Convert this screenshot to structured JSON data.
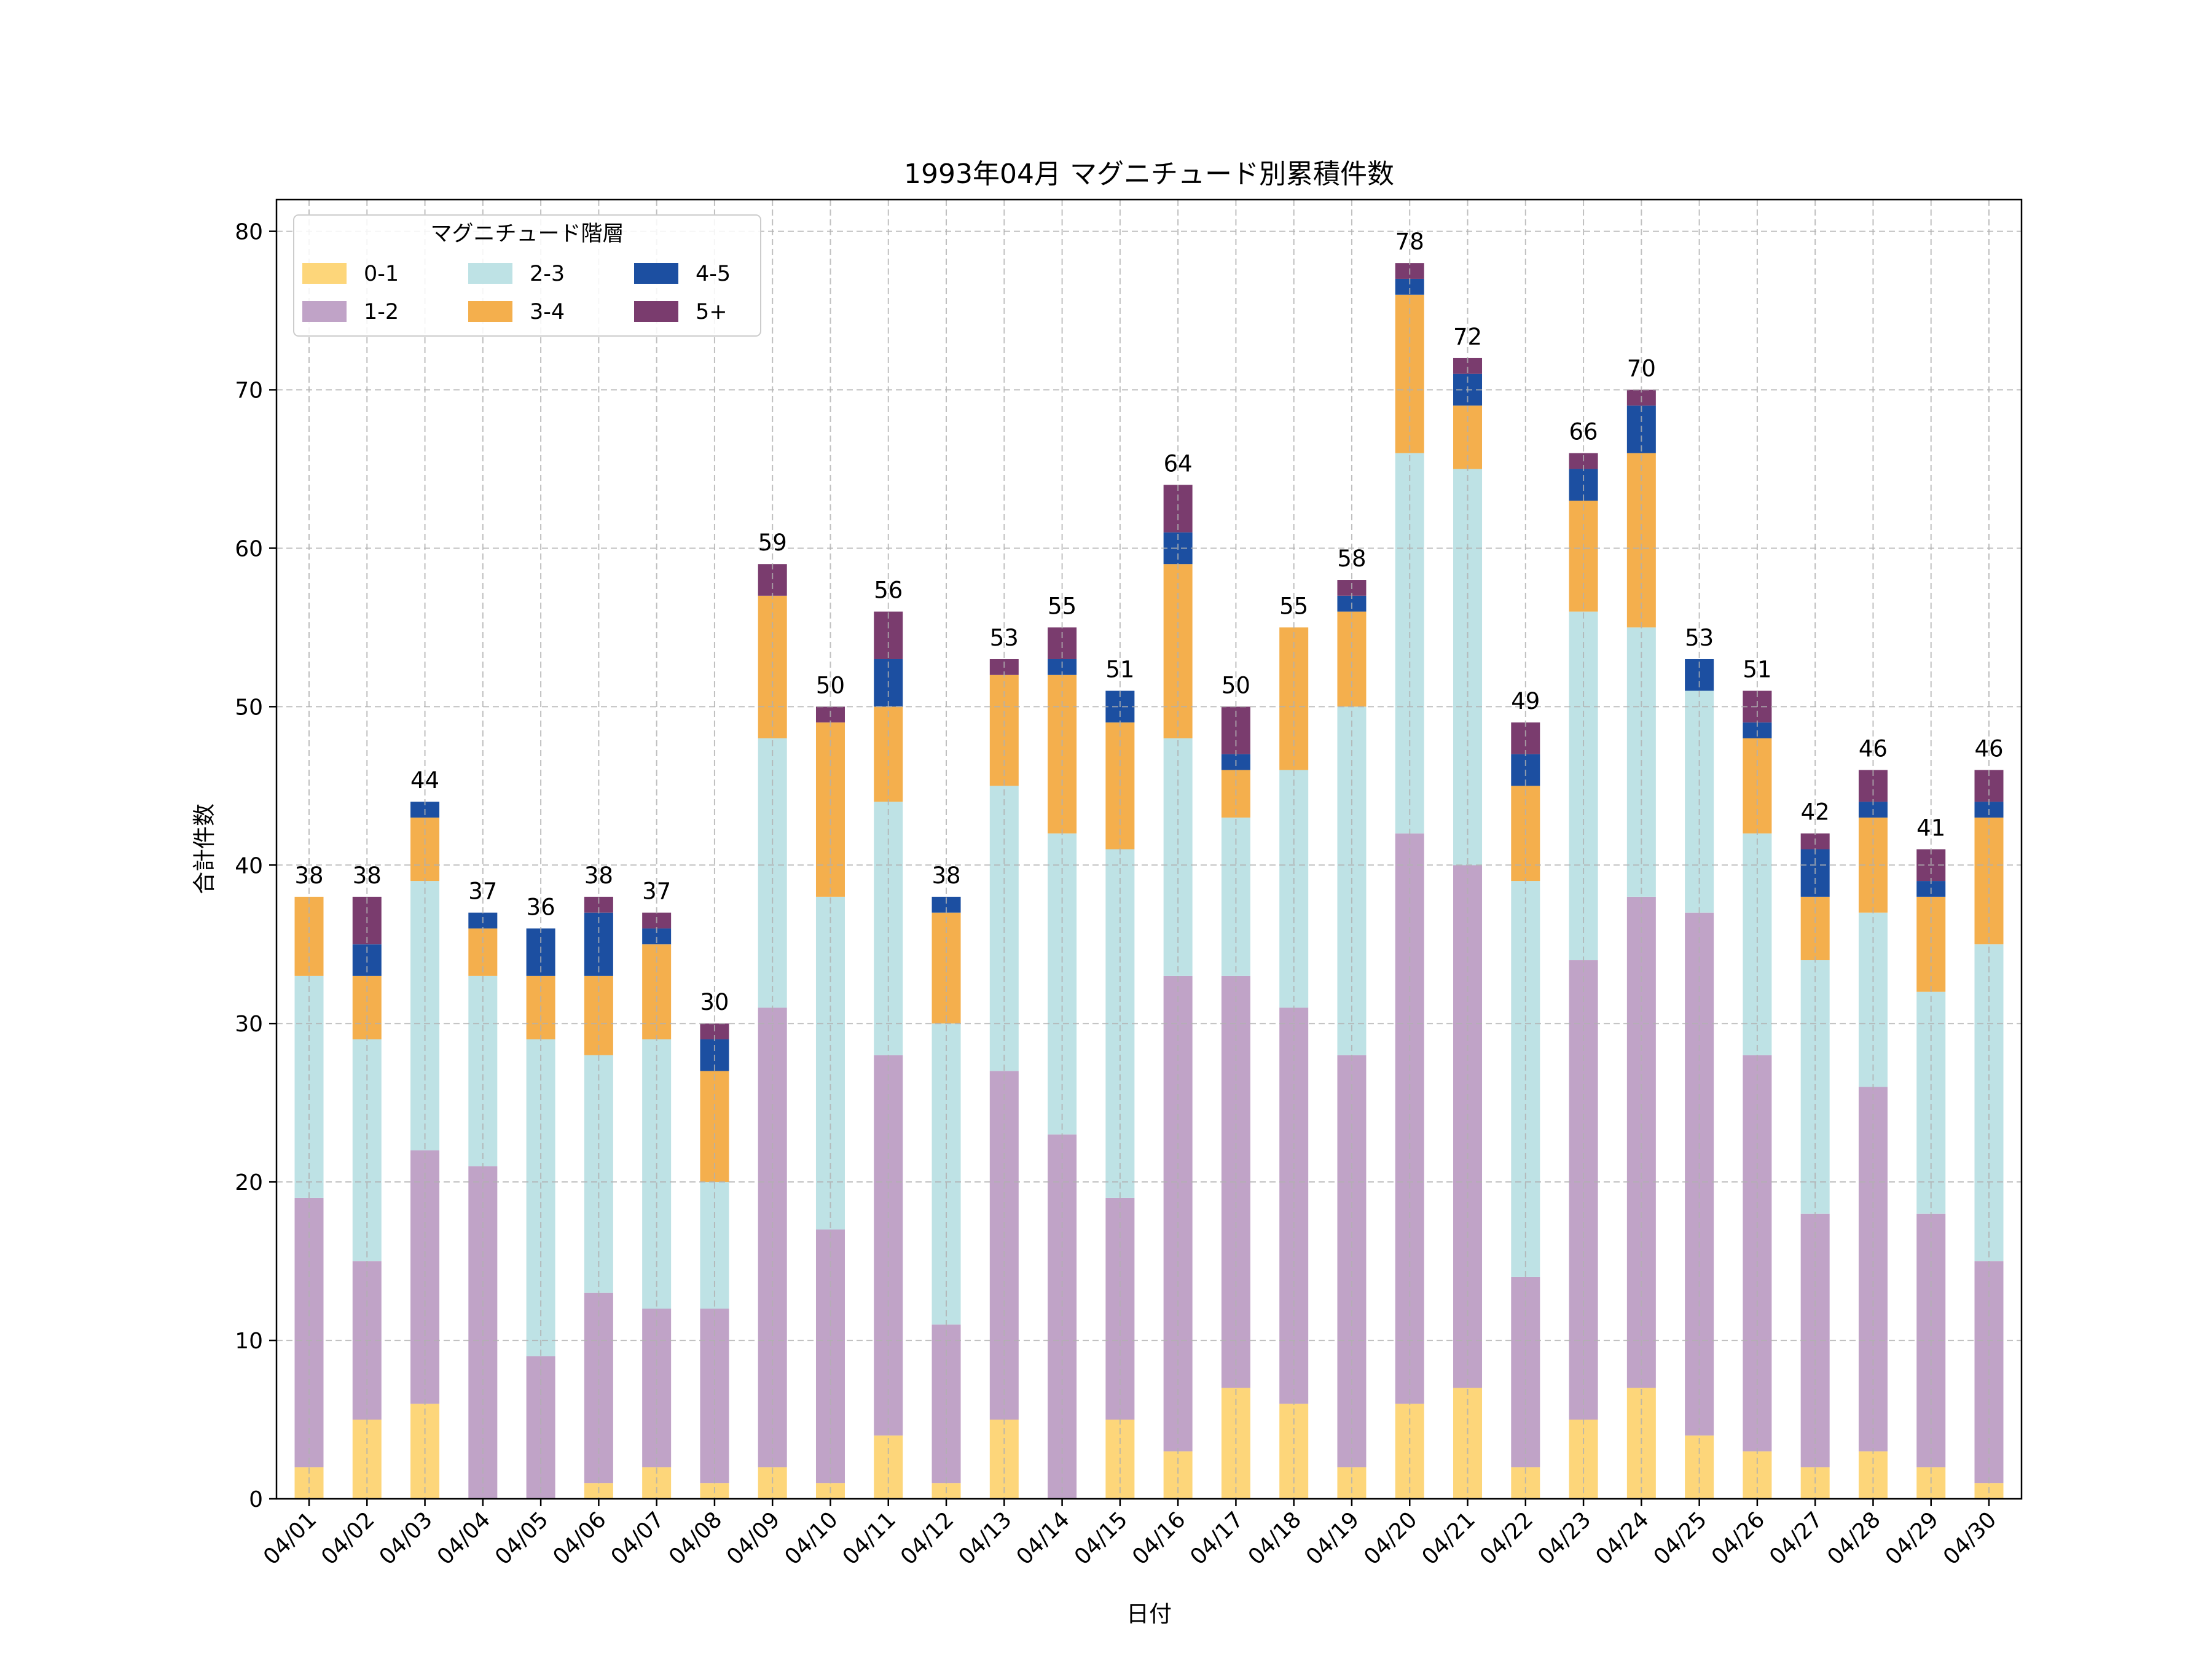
{
  "chart_data": {
    "type": "bar",
    "stacked": true,
    "title": "1993年04月 マグニチュード別累積件数",
    "xlabel": "日付",
    "ylabel": "合計件数",
    "ylim": [
      0,
      82
    ],
    "yticks": [
      0,
      10,
      20,
      30,
      40,
      50,
      60,
      70,
      80
    ],
    "grid": true,
    "legend": {
      "title": "マグニチュード階層",
      "position": "top-left",
      "columns": 3
    },
    "categories": [
      "04/01",
      "04/02",
      "04/03",
      "04/04",
      "04/05",
      "04/06",
      "04/07",
      "04/08",
      "04/09",
      "04/10",
      "04/11",
      "04/12",
      "04/13",
      "04/14",
      "04/15",
      "04/16",
      "04/17",
      "04/18",
      "04/19",
      "04/20",
      "04/21",
      "04/22",
      "04/23",
      "04/24",
      "04/25",
      "04/26",
      "04/27",
      "04/28",
      "04/29",
      "04/30"
    ],
    "series": [
      {
        "name": "0-1",
        "color": "#FDD67A",
        "values": [
          2,
          5,
          6,
          0,
          0,
          1,
          2,
          1,
          2,
          1,
          4,
          1,
          5,
          0,
          5,
          3,
          7,
          6,
          2,
          6,
          7,
          2,
          5,
          7,
          4,
          3,
          2,
          3,
          2,
          1
        ]
      },
      {
        "name": "1-2",
        "color": "#C0A3C7",
        "values": [
          17,
          10,
          16,
          21,
          9,
          12,
          10,
          11,
          29,
          16,
          24,
          10,
          22,
          23,
          14,
          30,
          26,
          25,
          26,
          36,
          33,
          12,
          29,
          31,
          33,
          25,
          16,
          23,
          16,
          14
        ]
      },
      {
        "name": "2-3",
        "color": "#BEE2E5",
        "values": [
          14,
          14,
          17,
          12,
          20,
          15,
          17,
          8,
          17,
          21,
          16,
          19,
          18,
          19,
          22,
          15,
          10,
          15,
          22,
          24,
          25,
          25,
          22,
          17,
          14,
          14,
          16,
          11,
          14,
          20
        ]
      },
      {
        "name": "3-4",
        "color": "#F4AF4D",
        "values": [
          5,
          4,
          4,
          3,
          4,
          5,
          6,
          7,
          9,
          11,
          6,
          7,
          7,
          10,
          8,
          11,
          3,
          9,
          6,
          10,
          4,
          6,
          7,
          11,
          0,
          6,
          4,
          6,
          6,
          8
        ]
      },
      {
        "name": "4-5",
        "color": "#1C4FA1",
        "values": [
          0,
          2,
          1,
          1,
          3,
          4,
          1,
          2,
          0,
          0,
          3,
          1,
          0,
          1,
          2,
          2,
          1,
          0,
          1,
          1,
          2,
          2,
          2,
          3,
          2,
          1,
          3,
          1,
          1,
          1
        ]
      },
      {
        "name": "5+",
        "color": "#7A3C6E",
        "values": [
          0,
          3,
          0,
          0,
          0,
          1,
          1,
          1,
          2,
          1,
          3,
          0,
          1,
          2,
          0,
          3,
          3,
          0,
          1,
          1,
          1,
          2,
          1,
          1,
          0,
          2,
          1,
          2,
          2,
          2
        ]
      }
    ],
    "totals": [
      38,
      38,
      44,
      37,
      36,
      38,
      37,
      30,
      59,
      50,
      56,
      38,
      53,
      55,
      51,
      64,
      50,
      55,
      58,
      78,
      72,
      49,
      66,
      70,
      53,
      51,
      42,
      46,
      41,
      46
    ]
  }
}
